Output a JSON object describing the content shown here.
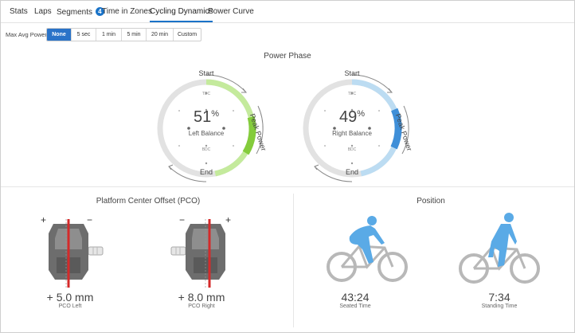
{
  "tabs": [
    {
      "label": "Stats"
    },
    {
      "label": "Laps"
    },
    {
      "label": "Segments",
      "badge": "4"
    },
    {
      "label": "Time in Zones"
    },
    {
      "label": "Cycling Dynamics",
      "active": true
    },
    {
      "label": "Power Curve"
    }
  ],
  "max_avg_power": {
    "label": "Max Avg Power",
    "options": [
      "None",
      "5 sec",
      "1 min",
      "5 min",
      "20 min",
      "Custom"
    ],
    "selected": "None"
  },
  "power_phase": {
    "title": "Power Phase",
    "left": {
      "value": "51",
      "unit": "%",
      "label": "Left Balance",
      "start": "Start",
      "end": "End",
      "peak": "Peak Power",
      "tdc": "TDC",
      "bdc": "BDC",
      "color_light": "#c4ea9c",
      "color_dark": "#84cc3c"
    },
    "right": {
      "value": "49",
      "unit": "%",
      "label": "Right Balance",
      "start": "Start",
      "end": "End",
      "peak": "Peak Power",
      "tdc": "TDC",
      "bdc": "BDC",
      "color_light": "#bcdcf2",
      "color_dark": "#3f8fd8"
    }
  },
  "pco": {
    "title": "Platform Center Offset (PCO)",
    "left": {
      "value": "+ 5.0 mm",
      "label": "PCO Left",
      "plus": "+",
      "minus": "−"
    },
    "right": {
      "value": "+ 8.0 mm",
      "label": "PCO Right",
      "plus": "+",
      "minus": "−"
    }
  },
  "position": {
    "title": "Position",
    "seated": {
      "value": "43:24",
      "label": "Seated Time"
    },
    "standing": {
      "value": "7:34",
      "label": "Standing Time"
    }
  },
  "colors": {
    "accent": "#1a73c8",
    "rider": "#5aaae6",
    "bike": "#b8b8b8",
    "pedal": "#6d6d6d",
    "pco_line": "#d42a2a"
  }
}
